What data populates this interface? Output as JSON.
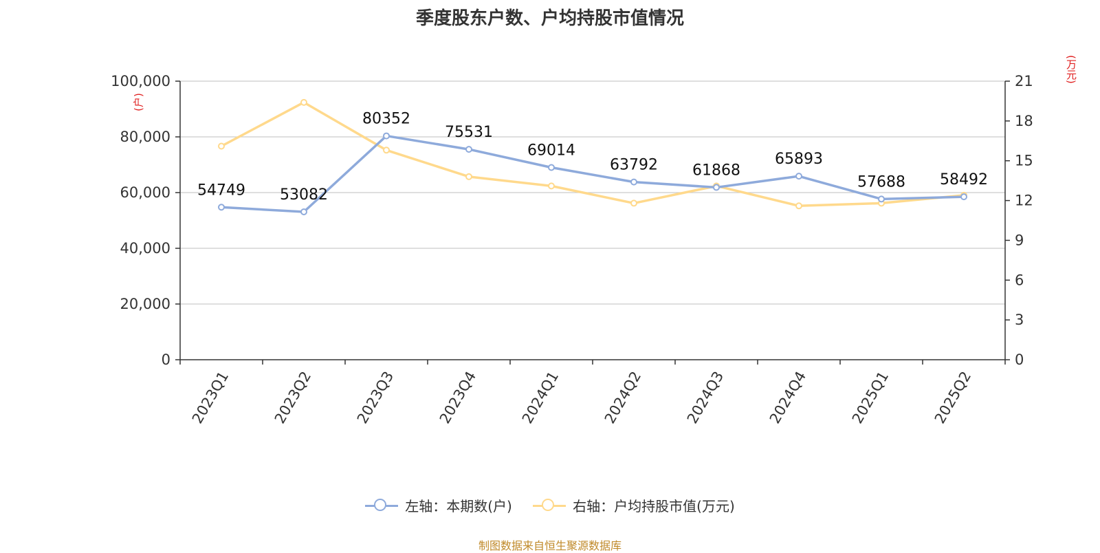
{
  "chart_data": {
    "type": "line",
    "title": "季度股东户数、户均持股市值情况",
    "categories": [
      "2023Q1",
      "2023Q2",
      "2023Q3",
      "2023Q4",
      "2024Q1",
      "2024Q2",
      "2024Q3",
      "2024Q4",
      "2025Q1",
      "2025Q2"
    ],
    "y_left": {
      "unit": "(户)",
      "range": [
        0,
        100000
      ],
      "ticks": [
        "0",
        "20,000",
        "40,000",
        "60,000",
        "80,000",
        "100,000"
      ],
      "tick_values": [
        0,
        20000,
        40000,
        60000,
        80000,
        100000
      ]
    },
    "y_right": {
      "unit": "(万元)",
      "range": [
        0,
        21
      ],
      "ticks": [
        "0",
        "3",
        "6",
        "9",
        "12",
        "15",
        "18",
        "21"
      ],
      "tick_values": [
        0,
        3,
        6,
        9,
        12,
        15,
        18,
        21
      ]
    },
    "series": [
      {
        "name": "左轴：本期数(户)",
        "axis": "left",
        "color": "#8eaadb",
        "values": [
          54749,
          53082,
          80352,
          75531,
          69014,
          63792,
          61868,
          65893,
          57688,
          58492
        ],
        "labels": [
          "54749",
          "53082",
          "80352",
          "75531",
          "69014",
          "63792",
          "61868",
          "65893",
          "57688",
          "58492"
        ]
      },
      {
        "name": "右轴：户均持股市值(万元)",
        "axis": "right",
        "color": "#ffd98c",
        "values": [
          16.1,
          19.4,
          15.8,
          13.8,
          13.1,
          11.8,
          13.1,
          11.6,
          11.8,
          12.4
        ]
      }
    ],
    "grid": true,
    "legend_position": "bottom"
  },
  "colors": {
    "unit_label": "#e02020",
    "source": "#c08a2a",
    "axis": "#333333",
    "grid": "#cccccc"
  },
  "source": "制图数据来自恒生聚源数据库"
}
